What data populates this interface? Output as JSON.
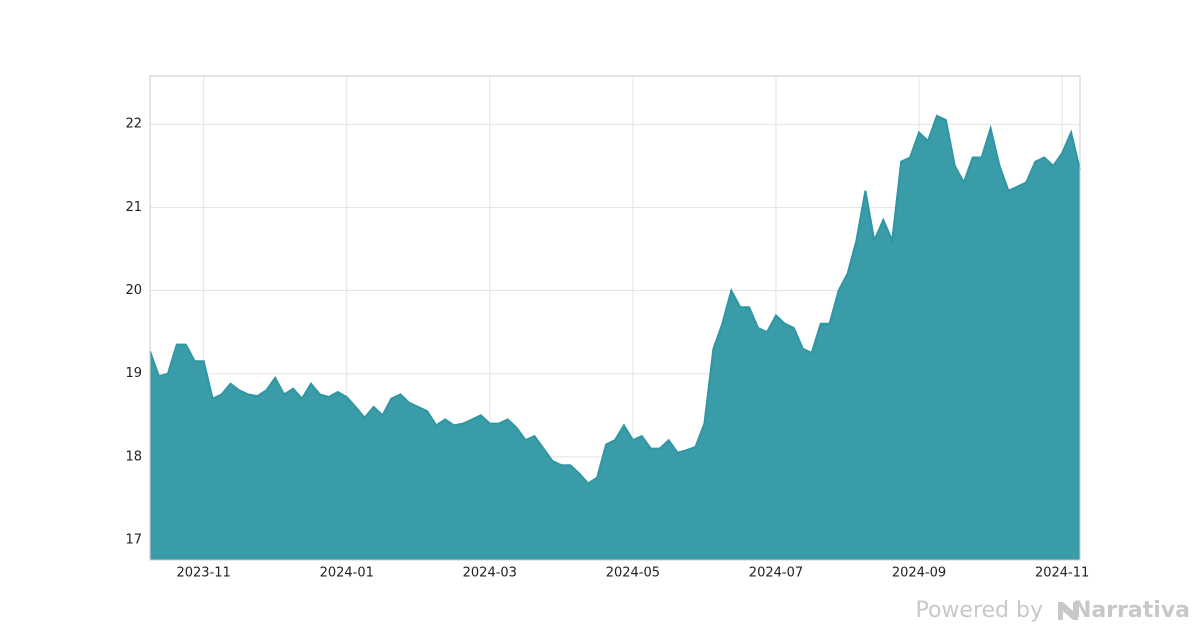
{
  "chart_data": {
    "type": "area",
    "categories": [
      null,
      null,
      null,
      null,
      null,
      null,
      "2023-11",
      null,
      null,
      null,
      null,
      null,
      null,
      null,
      null,
      null,
      null,
      null,
      null,
      null,
      null,
      null,
      "2024-01",
      null,
      null,
      null,
      null,
      null,
      null,
      null,
      null,
      null,
      null,
      null,
      null,
      null,
      null,
      null,
      "2024-03",
      null,
      null,
      null,
      null,
      null,
      null,
      null,
      null,
      null,
      null,
      null,
      null,
      null,
      null,
      null,
      "2024-05",
      null,
      null,
      null,
      null,
      null,
      null,
      null,
      null,
      null,
      null,
      null,
      null,
      null,
      null,
      null,
      "2024-07",
      null,
      null,
      null,
      null,
      null,
      null,
      null,
      null,
      null,
      null,
      null,
      null,
      null,
      null,
      null,
      "2024-09",
      null,
      null,
      null,
      null,
      null,
      null,
      null,
      null,
      null,
      null,
      null,
      null,
      null,
      null,
      null,
      "2024-11",
      null,
      null
    ],
    "series": [
      {
        "color": "#2e97a3",
        "values": [
          19.27,
          18.97,
          19.0,
          19.35,
          19.35,
          19.15,
          19.15,
          18.7,
          18.75,
          18.88,
          18.8,
          18.75,
          18.73,
          18.8,
          18.95,
          18.75,
          18.82,
          18.7,
          18.88,
          18.75,
          18.72,
          18.78,
          18.72,
          18.6,
          18.47,
          18.6,
          18.5,
          18.7,
          18.75,
          18.65,
          18.6,
          18.55,
          18.38,
          18.45,
          18.38,
          18.4,
          18.45,
          18.5,
          18.4,
          18.4,
          18.45,
          18.35,
          18.2,
          18.25,
          18.1,
          17.95,
          17.9,
          17.9,
          17.8,
          17.68,
          17.75,
          18.15,
          18.2,
          18.38,
          18.2,
          18.25,
          18.1,
          18.1,
          18.2,
          18.05,
          18.08,
          18.12,
          18.4,
          19.3,
          19.6,
          20.0,
          19.8,
          19.8,
          19.55,
          19.5,
          19.7,
          19.6,
          19.55,
          19.3,
          19.25,
          19.6,
          19.6,
          20.0,
          20.2,
          20.6,
          21.2,
          20.6,
          20.85,
          20.6,
          21.55,
          21.6,
          21.9,
          21.8,
          22.1,
          22.05,
          21.5,
          21.3,
          21.6,
          21.6,
          21.95,
          21.5,
          21.2,
          21.25,
          21.3,
          21.55,
          21.6,
          21.5,
          21.65,
          21.9,
          21.45
        ]
      }
    ],
    "ylim": [
      16.76,
      22.58
    ],
    "yticks": [
      17,
      18,
      19,
      20,
      21,
      22
    ],
    "grid": true
  },
  "credit": {
    "text": "Powered by",
    "brand": "Narrativa"
  }
}
